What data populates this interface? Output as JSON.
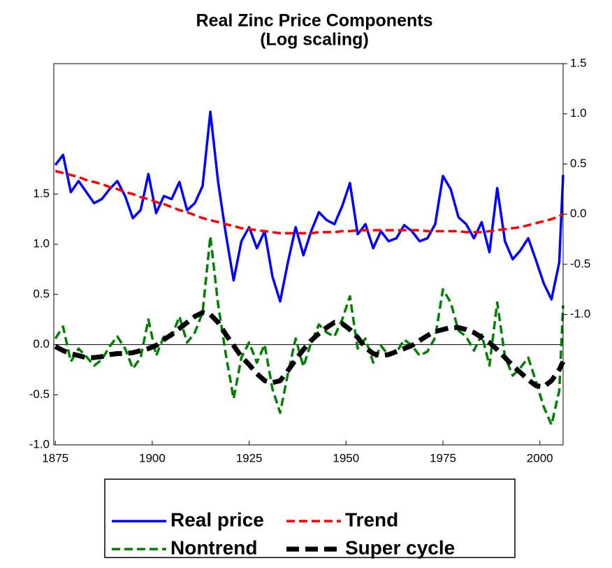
{
  "chart_data": {
    "type": "line",
    "title": "Real Zinc Price Components",
    "subtitle": "(Log scaling)",
    "x": [
      1875,
      1877,
      1879,
      1881,
      1883,
      1885,
      1887,
      1889,
      1891,
      1893,
      1895,
      1897,
      1899,
      1901,
      1903,
      1905,
      1907,
      1909,
      1911,
      1913,
      1915,
      1917,
      1919,
      1921,
      1923,
      1925,
      1927,
      1929,
      1931,
      1933,
      1935,
      1937,
      1939,
      1941,
      1943,
      1945,
      1947,
      1949,
      1951,
      1953,
      1955,
      1957,
      1959,
      1961,
      1963,
      1965,
      1967,
      1969,
      1971,
      1973,
      1975,
      1977,
      1979,
      1981,
      1983,
      1985,
      1987,
      1989,
      1991,
      1993,
      1995,
      1997,
      1999,
      2001,
      2003,
      2005,
      2006
    ],
    "xlim": [
      1874.6,
      2006
    ],
    "xticks": [
      1875,
      1900,
      1925,
      1950,
      1975,
      2000
    ],
    "ylim": [
      -1.0,
      2.8
    ],
    "yticks": [
      {
        "value": -1,
        "label": "-1.0"
      },
      -0.5,
      {
        "value": 0,
        "label": "0.0"
      },
      0.5,
      {
        "value": 1,
        "label": "1.0"
      },
      1.5
    ],
    "y2lim": [
      -2.3,
      1.5
    ],
    "y2ticks": [
      {
        "value": -1,
        "label": "-1.0"
      },
      -0.5,
      {
        "value": 0,
        "label": "0.0"
      },
      0.5,
      {
        "value": 1,
        "label": "1.0"
      },
      1.5
    ],
    "series": [
      {
        "name": "Real price",
        "color": "#0000ff",
        "axis": "y2",
        "dash": "solid",
        "values": [
          0.49,
          0.59,
          0.22,
          0.33,
          0.22,
          0.11,
          0.15,
          0.25,
          0.33,
          0.18,
          -0.04,
          0.04,
          0.4,
          0.01,
          0.18,
          0.15,
          0.32,
          0.04,
          0.11,
          0.28,
          1.02,
          0.32,
          -0.2,
          -0.66,
          -0.27,
          -0.13,
          -0.34,
          -0.17,
          -0.62,
          -0.87,
          -0.48,
          -0.13,
          -0.41,
          -0.17,
          0.02,
          -0.06,
          -0.1,
          0.08,
          0.31,
          -0.2,
          -0.1,
          -0.34,
          -0.17,
          -0.27,
          -0.24,
          -0.11,
          -0.17,
          -0.27,
          -0.24,
          -0.1,
          0.38,
          0.25,
          -0.03,
          -0.1,
          -0.24,
          -0.08,
          -0.38,
          0.26,
          -0.27,
          -0.45,
          -0.36,
          -0.24,
          -0.46,
          -0.69,
          -0.85,
          -0.48,
          0.39
        ]
      },
      {
        "name": "Trend",
        "color": "#ff0000",
        "axis": "y2",
        "dash": "dashed",
        "values": [
          0.43,
          0.41,
          0.39,
          0.37,
          0.34,
          0.32,
          0.3,
          0.27,
          0.25,
          0.22,
          0.2,
          0.17,
          0.15,
          0.12,
          0.1,
          0.07,
          0.04,
          0.02,
          -0.01,
          -0.04,
          -0.06,
          -0.08,
          -0.1,
          -0.12,
          -0.14,
          -0.15,
          -0.16,
          -0.17,
          -0.18,
          -0.19,
          -0.19,
          -0.19,
          -0.19,
          -0.19,
          -0.18,
          -0.18,
          -0.18,
          -0.17,
          -0.17,
          -0.16,
          -0.16,
          -0.16,
          -0.16,
          -0.16,
          -0.16,
          -0.16,
          -0.16,
          -0.16,
          -0.17,
          -0.17,
          -0.17,
          -0.17,
          -0.17,
          -0.18,
          -0.18,
          -0.18,
          -0.17,
          -0.16,
          -0.15,
          -0.14,
          -0.13,
          -0.11,
          -0.09,
          -0.07,
          -0.05,
          -0.02,
          0.0
        ]
      },
      {
        "name": "Nontrend",
        "color": "#008000",
        "axis": "y",
        "dash": "dashed",
        "values": [
          0.06,
          0.18,
          -0.17,
          -0.04,
          -0.12,
          -0.21,
          -0.15,
          -0.02,
          0.08,
          -0.04,
          -0.24,
          -0.13,
          0.25,
          -0.11,
          0.08,
          0.08,
          0.28,
          0.02,
          0.12,
          0.32,
          1.08,
          0.4,
          -0.1,
          -0.54,
          -0.13,
          0.02,
          -0.18,
          0.0,
          -0.44,
          -0.68,
          -0.29,
          0.06,
          -0.22,
          0.02,
          0.2,
          0.12,
          0.08,
          0.25,
          0.48,
          -0.04,
          0.06,
          -0.18,
          -0.01,
          -0.11,
          -0.08,
          0.05,
          -0.01,
          -0.11,
          -0.07,
          0.07,
          0.55,
          0.42,
          0.14,
          0.08,
          -0.06,
          0.1,
          -0.21,
          0.42,
          -0.12,
          -0.31,
          -0.23,
          -0.13,
          -0.37,
          -0.62,
          -0.8,
          -0.46,
          0.39
        ]
      },
      {
        "name": "Super cycle",
        "color": "#000000",
        "axis": "y",
        "dash": "thick-dashed",
        "values": [
          -0.02,
          -0.06,
          -0.09,
          -0.11,
          -0.13,
          -0.13,
          -0.12,
          -0.1,
          -0.09,
          -0.09,
          -0.08,
          -0.06,
          -0.04,
          -0.01,
          0.05,
          0.1,
          0.16,
          0.22,
          0.28,
          0.32,
          0.3,
          0.22,
          0.1,
          -0.01,
          -0.12,
          -0.2,
          -0.29,
          -0.36,
          -0.38,
          -0.36,
          -0.26,
          -0.15,
          -0.05,
          0.04,
          0.11,
          0.17,
          0.22,
          0.21,
          0.15,
          0.07,
          -0.03,
          -0.09,
          -0.11,
          -0.1,
          -0.07,
          -0.04,
          -0.01,
          0.04,
          0.09,
          0.13,
          0.15,
          0.17,
          0.17,
          0.15,
          0.12,
          0.07,
          0.02,
          -0.05,
          -0.13,
          -0.21,
          -0.28,
          -0.35,
          -0.41,
          -0.42,
          -0.36,
          -0.25,
          -0.17
        ]
      }
    ]
  }
}
